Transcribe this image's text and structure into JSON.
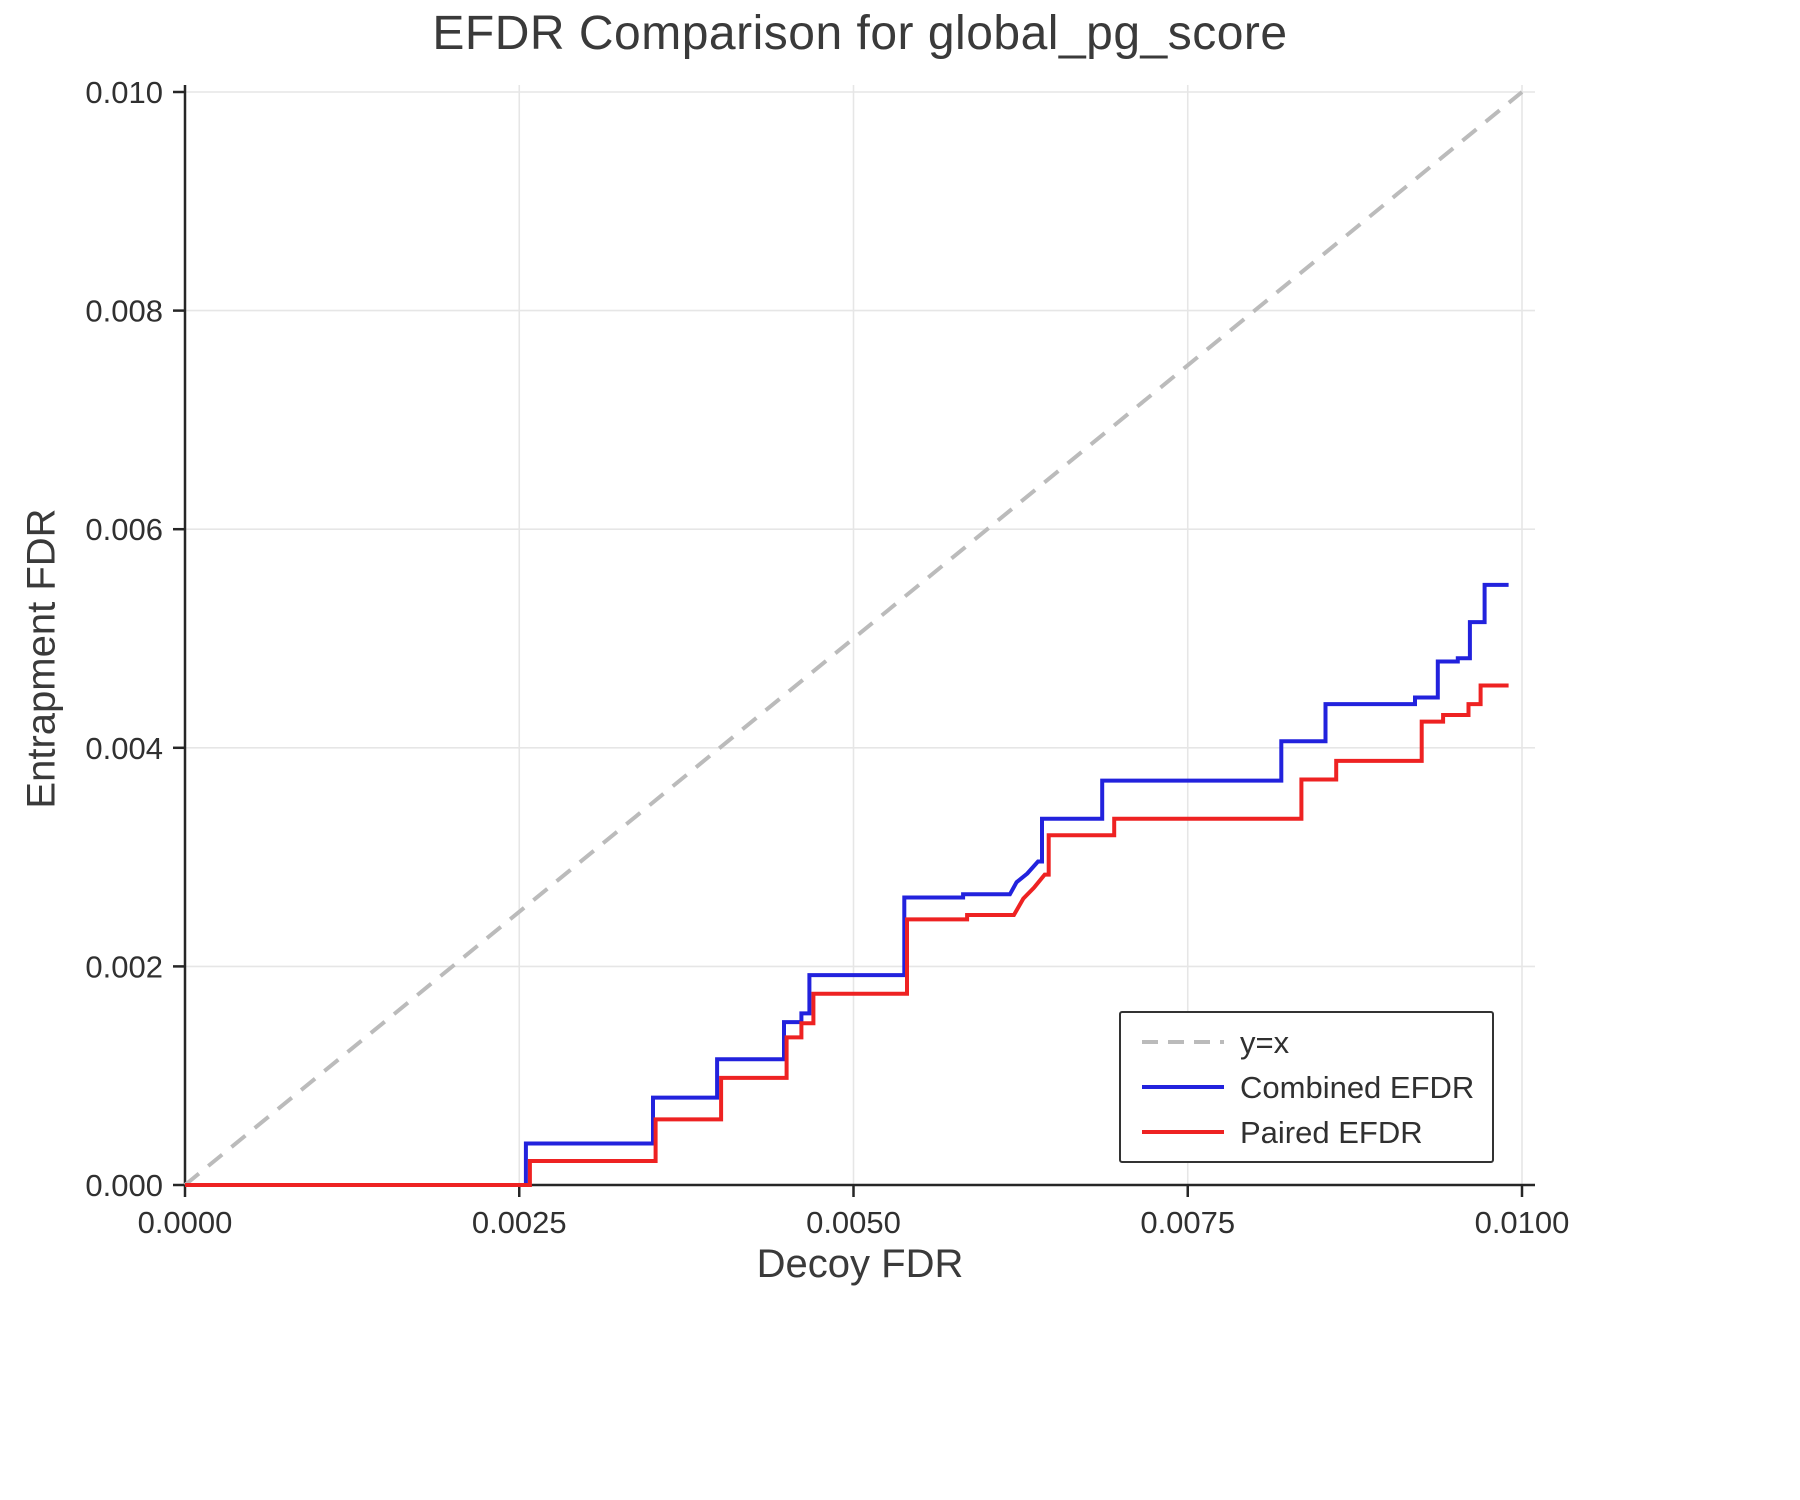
{
  "chart_data": {
    "type": "line",
    "title": "EFDR Comparison for global_pg_score",
    "xlabel": "Decoy FDR",
    "ylabel": "Entrapment FDR",
    "xlim": [
      0.0,
      0.01
    ],
    "ylim": [
      0.0,
      0.01
    ],
    "x_ticks": [
      0.0,
      0.0025,
      0.005,
      0.0075,
      0.01
    ],
    "x_tick_labels": [
      "0.0000",
      "0.0025",
      "0.0050",
      "0.0075",
      "0.0100"
    ],
    "y_ticks": [
      0.0,
      0.002,
      0.004,
      0.006,
      0.008,
      0.01
    ],
    "y_tick_labels": [
      "0.000",
      "0.002",
      "0.004",
      "0.006",
      "0.008",
      "0.010"
    ],
    "grid": true,
    "grid_color": "#e6e6e6",
    "legend_position": "lower right",
    "series": [
      {
        "name": "y=x",
        "style": "dashed",
        "color": "#bbbbbb",
        "points": [
          [
            0,
            0
          ],
          [
            0.01,
            0.01
          ]
        ]
      },
      {
        "name": "Combined EFDR",
        "style": "solid",
        "color": "#2222dd",
        "points": [
          [
            0,
            0
          ],
          [
            0.00255,
            0
          ],
          [
            0.00255,
            0.00038
          ],
          [
            0.0035,
            0.00038
          ],
          [
            0.0035,
            0.0008
          ],
          [
            0.00398,
            0.0008
          ],
          [
            0.00398,
            0.00115
          ],
          [
            0.00448,
            0.00115
          ],
          [
            0.00448,
            0.00149
          ],
          [
            0.00461,
            0.00149
          ],
          [
            0.00461,
            0.00157
          ],
          [
            0.00467,
            0.00157
          ],
          [
            0.00467,
            0.00192
          ],
          [
            0.00538,
            0.00192
          ],
          [
            0.00538,
            0.00263
          ],
          [
            0.00582,
            0.00263
          ],
          [
            0.00582,
            0.00266
          ],
          [
            0.00617,
            0.00266
          ],
          [
            0.00622,
            0.00277
          ],
          [
            0.0063,
            0.00285
          ],
          [
            0.00638,
            0.00296
          ],
          [
            0.00641,
            0.00296
          ],
          [
            0.00641,
            0.00335
          ],
          [
            0.00686,
            0.00335
          ],
          [
            0.00686,
            0.0037
          ],
          [
            0.0082,
            0.0037
          ],
          [
            0.0082,
            0.00406
          ],
          [
            0.00853,
            0.00406
          ],
          [
            0.00853,
            0.0044
          ],
          [
            0.0092,
            0.0044
          ],
          [
            0.0092,
            0.00446
          ],
          [
            0.00937,
            0.00446
          ],
          [
            0.00937,
            0.00479
          ],
          [
            0.00952,
            0.00479
          ],
          [
            0.00952,
            0.00482
          ],
          [
            0.00961,
            0.00482
          ],
          [
            0.00961,
            0.00515
          ],
          [
            0.00972,
            0.00515
          ],
          [
            0.00972,
            0.00549
          ],
          [
            0.0099,
            0.00549
          ]
        ]
      },
      {
        "name": "Paired EFDR",
        "style": "solid",
        "color": "#ee2222",
        "points": [
          [
            0,
            0
          ],
          [
            0.00258,
            0
          ],
          [
            0.00258,
            0.00022
          ],
          [
            0.00352,
            0.00022
          ],
          [
            0.00352,
            0.0006
          ],
          [
            0.00401,
            0.0006
          ],
          [
            0.00401,
            0.00098
          ],
          [
            0.0045,
            0.00098
          ],
          [
            0.0045,
            0.00135
          ],
          [
            0.00461,
            0.00135
          ],
          [
            0.00461,
            0.00148
          ],
          [
            0.0047,
            0.00148
          ],
          [
            0.0047,
            0.00175
          ],
          [
            0.0054,
            0.00175
          ],
          [
            0.0054,
            0.00243
          ],
          [
            0.00585,
            0.00243
          ],
          [
            0.00585,
            0.00247
          ],
          [
            0.0062,
            0.00247
          ],
          [
            0.00627,
            0.00262
          ],
          [
            0.00635,
            0.00272
          ],
          [
            0.00643,
            0.00284
          ],
          [
            0.00646,
            0.00284
          ],
          [
            0.00646,
            0.0032
          ],
          [
            0.00695,
            0.0032
          ],
          [
            0.00695,
            0.00335
          ],
          [
            0.00835,
            0.00335
          ],
          [
            0.00835,
            0.00371
          ],
          [
            0.00861,
            0.00371
          ],
          [
            0.00861,
            0.00388
          ],
          [
            0.00925,
            0.00388
          ],
          [
            0.00925,
            0.00424
          ],
          [
            0.00941,
            0.00424
          ],
          [
            0.00941,
            0.0043
          ],
          [
            0.0096,
            0.0043
          ],
          [
            0.0096,
            0.0044
          ],
          [
            0.00969,
            0.0044
          ],
          [
            0.00969,
            0.00457
          ],
          [
            0.0099,
            0.00457
          ]
        ]
      }
    ]
  }
}
